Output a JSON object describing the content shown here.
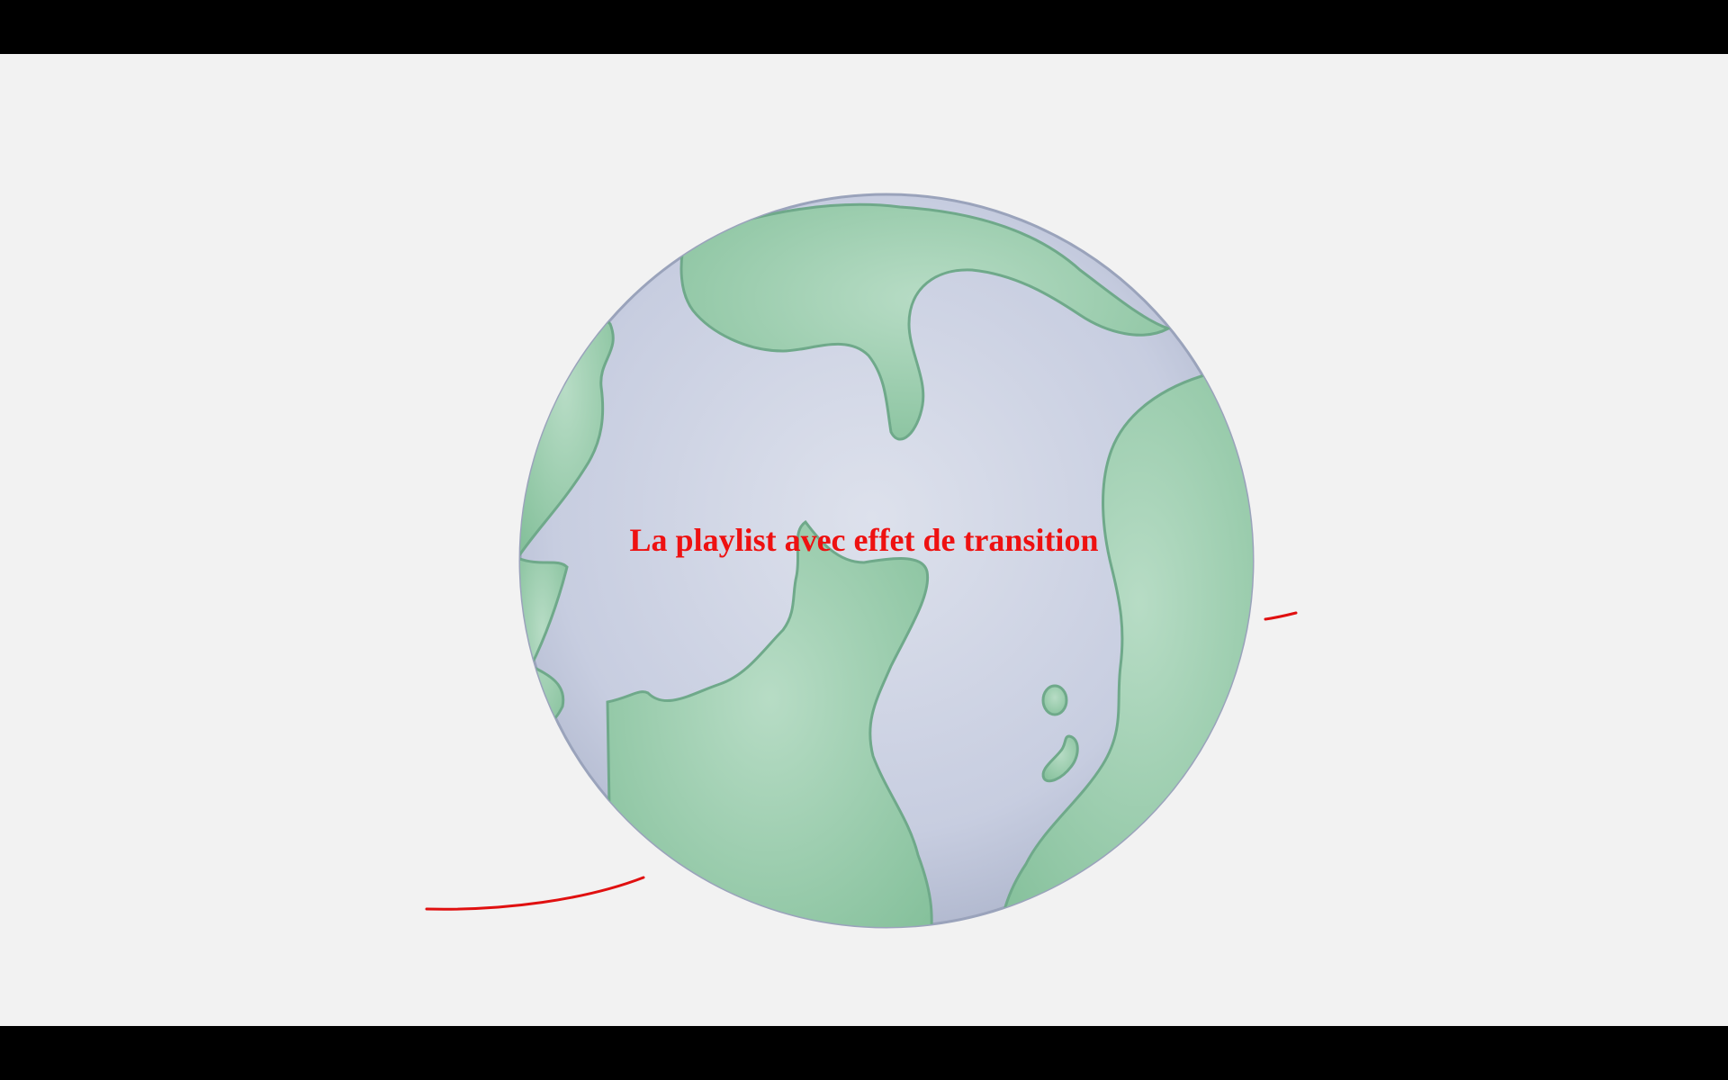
{
  "video": {
    "title": "La playlist avec effet de transition",
    "title_color": "#ee1111"
  },
  "colors": {
    "background": "#f2f2f2",
    "letterbox": "#000000",
    "ocean": "#c9cfe0",
    "land": "#8fc6a2",
    "land_edge": "#6fa98a",
    "orbit_stroke": "#e01010"
  },
  "illustration": {
    "subject": "globe-icon"
  }
}
